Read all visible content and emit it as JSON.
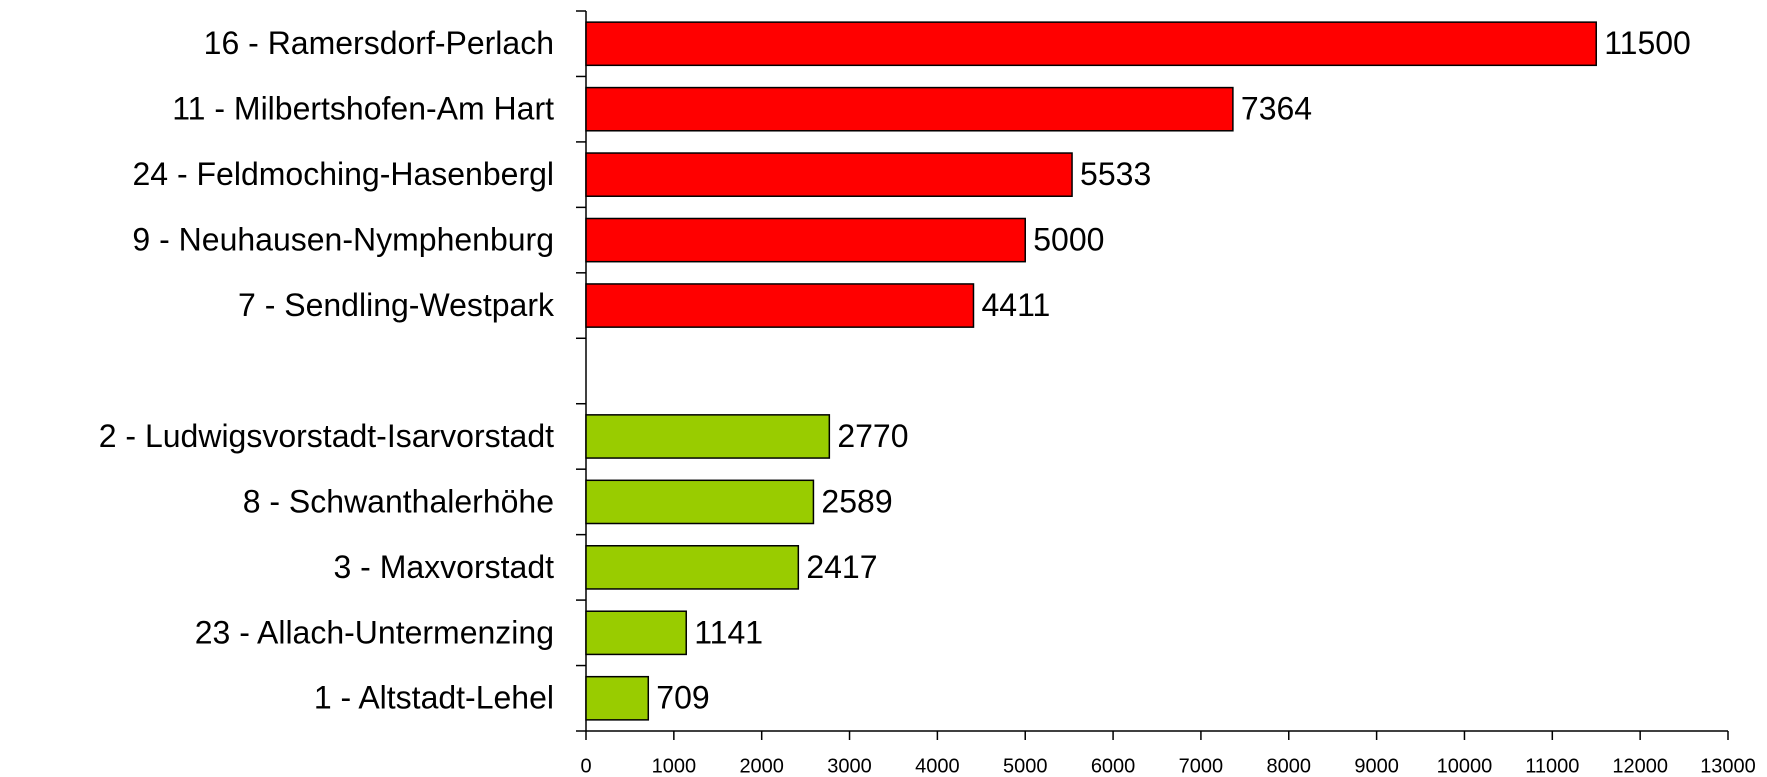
{
  "chart_data": {
    "type": "barh",
    "categories": [
      "16 - Ramersdorf-Perlach",
      "11 - Milbertshofen-Am Hart",
      "24 - Feldmoching-Hasenbergl",
      "9 - Neuhausen-Nymphenburg",
      "7 - Sendling-Westpark",
      null,
      "2 - Ludwigsvorstadt-Isarvorstadt",
      "8 - Schwanthalerhöhe",
      "3 - Maxvorstadt",
      "23 - Allach-Untermenzing",
      "1 - Altstadt-Lehel"
    ],
    "values": [
      11500,
      7364,
      5533,
      5000,
      4411,
      null,
      2770,
      2589,
      2417,
      1141,
      709
    ],
    "colors": [
      "#ff0000",
      "#ff0000",
      "#ff0000",
      "#ff0000",
      "#ff0000",
      null,
      "#99cc00",
      "#99cc00",
      "#99cc00",
      "#99cc00",
      "#99cc00"
    ],
    "xlim": [
      0,
      13000
    ],
    "xticks": [
      0,
      1000,
      2000,
      3000,
      4000,
      5000,
      6000,
      7000,
      8000,
      9000,
      10000,
      11000,
      12000,
      13000
    ],
    "grid": false
  }
}
